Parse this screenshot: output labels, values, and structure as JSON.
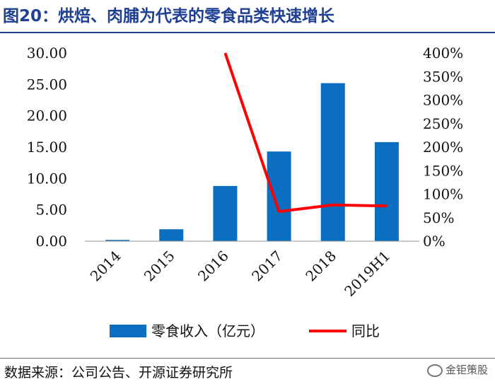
{
  "header": {
    "title": "图20：烘焙、肉脯为代表的零食品类快速增长"
  },
  "footer": {
    "source": "数据来源：公司公告、开源证券研究所",
    "watermark": "金钜策股"
  },
  "chart_data": {
    "type": "bar",
    "categories": [
      "2014",
      "2015",
      "2016",
      "2017",
      "2018",
      "2019H1"
    ],
    "series": [
      {
        "name": "零食收入（亿元）",
        "type": "bar",
        "axis": "left",
        "color": "#0c6ec0",
        "values": [
          0.2,
          1.9,
          8.8,
          14.3,
          25.2,
          15.8
        ]
      },
      {
        "name": "同比",
        "type": "line",
        "axis": "right",
        "color": "#ff0000",
        "values": [
          null,
          null,
          400,
          63,
          77,
          75
        ]
      }
    ],
    "y_left": {
      "ylim": [
        0,
        30
      ],
      "ticks": [
        "0.00",
        "5.00",
        "10.00",
        "15.00",
        "20.00",
        "25.00",
        "30.00"
      ]
    },
    "y_right": {
      "ylim": [
        0,
        400
      ],
      "ticks": [
        "0%",
        "50%",
        "100%",
        "150%",
        "200%",
        "250%",
        "300%",
        "350%",
        "400%"
      ]
    },
    "grid": false,
    "legend_position": "bottom"
  }
}
